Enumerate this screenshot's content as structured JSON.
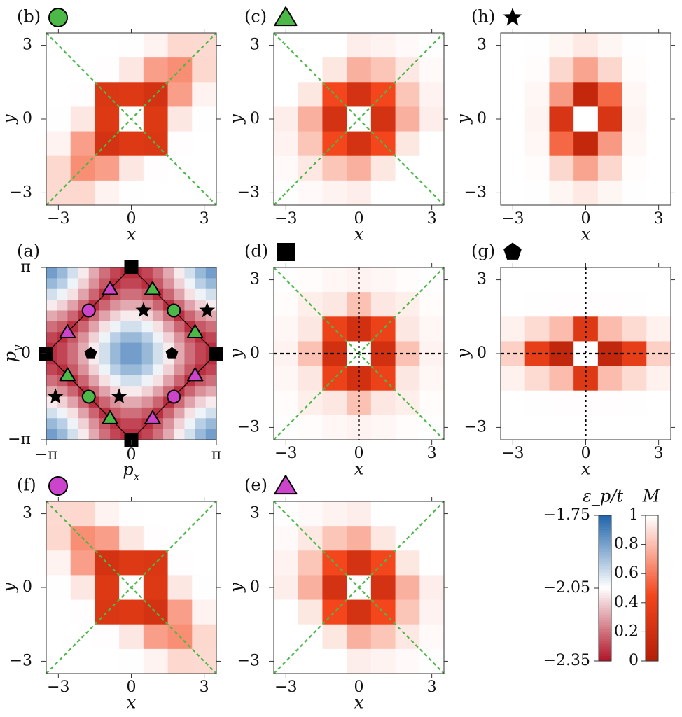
{
  "figure": {
    "panels": [
      {
        "id": "b",
        "label": "(b)",
        "marker": "circle",
        "marker_color": "#4cb848",
        "guides": "diagonals",
        "pattern": "b"
      },
      {
        "id": "c",
        "label": "(c)",
        "marker": "triangle",
        "marker_color": "#4cb848",
        "guides": "diagonals",
        "pattern": "c"
      },
      {
        "id": "h",
        "label": "(h)",
        "marker": "star",
        "marker_color": "#000000",
        "guides": "none",
        "pattern": "h"
      },
      {
        "id": "d",
        "label": "(d)",
        "marker": "square",
        "marker_color": "#000000",
        "guides": "diagonals+axes",
        "pattern": "d"
      },
      {
        "id": "g",
        "label": "(g)",
        "marker": "pentagon",
        "marker_color": "#000000",
        "guides": "vertical",
        "pattern": "g"
      },
      {
        "id": "f",
        "label": "(f)",
        "marker": "circle",
        "marker_color": "#cc44cc",
        "guides": "diagonals",
        "pattern": "f"
      },
      {
        "id": "e",
        "label": "(e)",
        "marker": "triangle",
        "marker_color": "#cc44cc",
        "guides": "diagonals",
        "pattern": "e"
      }
    ],
    "panel_a": {
      "label": "(a)",
      "xlabel": "p_x",
      "ylabel": "p_y",
      "xticks": [
        "−π",
        "0",
        "π"
      ],
      "yticks": [
        "π",
        "0",
        "−π"
      ]
    },
    "real_space_axes": {
      "xlabel": "x",
      "ylabel": "y",
      "ticks": [
        "−3",
        "0",
        "3"
      ]
    },
    "colorbar_energy": {
      "title": "ε_p/t",
      "ticks": [
        "−1.75",
        "−2.05",
        "−2.35"
      ],
      "colors": [
        "#2166ac",
        "#ffffff",
        "#b2182b"
      ]
    },
    "colorbar_M": {
      "title": "M",
      "ticks": [
        "1",
        "0.8",
        "0.6",
        "0.4",
        "0.2",
        "0"
      ],
      "colors": [
        "#ffffff",
        "#f3461c",
        "#b52008"
      ]
    },
    "guide_colors": {
      "diagonal": "#4cb848",
      "axis": "#000000"
    }
  },
  "chart_data": [
    {
      "type": "heatmap",
      "panel": "a",
      "title": "",
      "xlabel": "p_x",
      "ylabel": "p_y",
      "xlim": [
        -3.1416,
        3.1416
      ],
      "ylim": [
        -3.1416,
        3.1416
      ],
      "colorbar": {
        "label": "ε_p/t",
        "range": [
          -2.35,
          -1.75
        ]
      },
      "markers": [
        {
          "shape": "square",
          "color": "#000000",
          "x": 0,
          "y": 3.1416
        },
        {
          "shape": "square",
          "color": "#000000",
          "x": -3.1416,
          "y": 0
        },
        {
          "shape": "square",
          "color": "#000000",
          "x": 3.1416,
          "y": 0
        },
        {
          "shape": "square",
          "color": "#000000",
          "x": 0,
          "y": -3.1416
        },
        {
          "shape": "triangle",
          "color": "#4cb848",
          "x": 0.785,
          "y": 2.356
        },
        {
          "shape": "triangle",
          "color": "#4cb848",
          "x": 2.356,
          "y": 0.785
        },
        {
          "shape": "triangle",
          "color": "#4cb848",
          "x": -2.356,
          "y": -0.785
        },
        {
          "shape": "triangle",
          "color": "#4cb848",
          "x": -0.785,
          "y": -2.356
        },
        {
          "shape": "triangle",
          "color": "#cc44cc",
          "x": -0.785,
          "y": 2.356
        },
        {
          "shape": "triangle",
          "color": "#cc44cc",
          "x": -2.356,
          "y": 0.785
        },
        {
          "shape": "triangle",
          "color": "#cc44cc",
          "x": 2.356,
          "y": -0.785
        },
        {
          "shape": "triangle",
          "color": "#cc44cc",
          "x": 0.785,
          "y": -2.356
        },
        {
          "shape": "circle",
          "color": "#cc44cc",
          "x": -1.571,
          "y": 1.571
        },
        {
          "shape": "circle",
          "color": "#cc44cc",
          "x": 1.571,
          "y": -1.571
        },
        {
          "shape": "circle",
          "color": "#4cb848",
          "x": 1.571,
          "y": 1.571
        },
        {
          "shape": "circle",
          "color": "#4cb848",
          "x": -1.571,
          "y": -1.571
        },
        {
          "shape": "star",
          "color": "#000000",
          "x": 0.45,
          "y": 1.57
        },
        {
          "shape": "star",
          "color": "#000000",
          "x": 2.8,
          "y": 1.57
        },
        {
          "shape": "star",
          "color": "#000000",
          "x": -0.45,
          "y": -1.57
        },
        {
          "shape": "star",
          "color": "#000000",
          "x": -2.8,
          "y": -1.57
        },
        {
          "shape": "pentagon",
          "color": "#000000",
          "x": -1.5,
          "y": 0
        },
        {
          "shape": "pentagon",
          "color": "#000000",
          "x": 1.5,
          "y": 0
        }
      ]
    },
    {
      "type": "heatmap",
      "panel": "b",
      "xlabel": "x",
      "ylabel": "y",
      "xlim": [
        -3.5,
        3.5
      ],
      "ylim": [
        -3.5,
        3.5
      ],
      "colorbar": {
        "label": "M",
        "range": [
          0,
          1
        ]
      }
    },
    {
      "type": "heatmap",
      "panel": "c",
      "xlabel": "x",
      "ylabel": "y",
      "xlim": [
        -3.5,
        3.5
      ],
      "ylim": [
        -3.5,
        3.5
      ],
      "colorbar": {
        "label": "M",
        "range": [
          0,
          1
        ]
      }
    },
    {
      "type": "heatmap",
      "panel": "h",
      "xlabel": "x",
      "ylabel": "y",
      "xlim": [
        -3.5,
        3.5
      ],
      "ylim": [
        -3.5,
        3.5
      ],
      "colorbar": {
        "label": "M",
        "range": [
          0,
          1
        ]
      }
    },
    {
      "type": "heatmap",
      "panel": "d",
      "xlabel": "x",
      "ylabel": "y",
      "xlim": [
        -3.5,
        3.5
      ],
      "ylim": [
        -3.5,
        3.5
      ],
      "colorbar": {
        "label": "M",
        "range": [
          0,
          1
        ]
      }
    },
    {
      "type": "heatmap",
      "panel": "g",
      "xlabel": "x",
      "ylabel": "y",
      "xlim": [
        -3.5,
        3.5
      ],
      "ylim": [
        -3.5,
        3.5
      ],
      "colorbar": {
        "label": "M",
        "range": [
          0,
          1
        ]
      }
    },
    {
      "type": "heatmap",
      "panel": "f",
      "xlabel": "x",
      "ylabel": "y",
      "xlim": [
        -3.5,
        3.5
      ],
      "ylim": [
        -3.5,
        3.5
      ],
      "colorbar": {
        "label": "M",
        "range": [
          0,
          1
        ]
      }
    },
    {
      "type": "heatmap",
      "panel": "e",
      "xlabel": "x",
      "ylabel": "y",
      "xlim": [
        -3.5,
        3.5
      ],
      "ylim": [
        -3.5,
        3.5
      ],
      "colorbar": {
        "label": "M",
        "range": [
          0,
          1
        ]
      }
    }
  ]
}
